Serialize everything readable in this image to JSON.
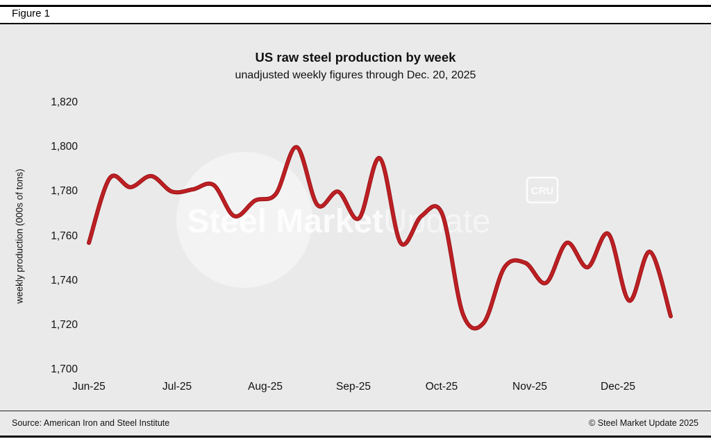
{
  "header": {
    "figure_label": "Figure 1"
  },
  "chart": {
    "title": "US raw steel production by week",
    "subtitle": "unadjusted weekly figures through Dec. 20, 2025",
    "y_axis_title": "weekly production (000s of tons)"
  },
  "watermark": {
    "bold": "Steel Market",
    "light": "Update",
    "badge": "CRU"
  },
  "footer": {
    "source": "Source: American Iron and Steel Institute",
    "copyright": "© Steel Market Update 2025"
  },
  "colors": {
    "background": "#eaeaea",
    "line": "#bd2024",
    "line_dark": "#9a1216",
    "text": "#111111"
  },
  "chart_data": {
    "type": "line",
    "title": "US raw steel production by week",
    "subtitle": "unadjusted weekly figures through Dec. 20, 2025",
    "xlabel": "",
    "ylabel": "weekly production (000s of tons)",
    "ylim": [
      1700,
      1820
    ],
    "y_ticks": [
      1700,
      1720,
      1740,
      1760,
      1780,
      1800,
      1820
    ],
    "y_tick_labels": [
      "1,700",
      "1,720",
      "1,740",
      "1,760",
      "1,780",
      "1,800",
      "1,820"
    ],
    "x_tick_labels": [
      "Jun-25",
      "Jul-25",
      "Aug-25",
      "Sep-25",
      "Oct-25",
      "Nov-25",
      "Dec-25"
    ],
    "x_unit": "week",
    "grid": false,
    "legend": "none",
    "series": [
      {
        "name": "US raw steel production (000s of tons), unadjusted weekly",
        "values": [
          1757,
          1786,
          1782,
          1787,
          1780,
          1781,
          1783,
          1769,
          1776,
          1779,
          1800,
          1774,
          1780,
          1768,
          1795,
          1757,
          1769,
          1770,
          1725,
          1721,
          1746,
          1748,
          1739,
          1757,
          1746,
          1761,
          1731,
          1753,
          1724
        ]
      }
    ]
  }
}
